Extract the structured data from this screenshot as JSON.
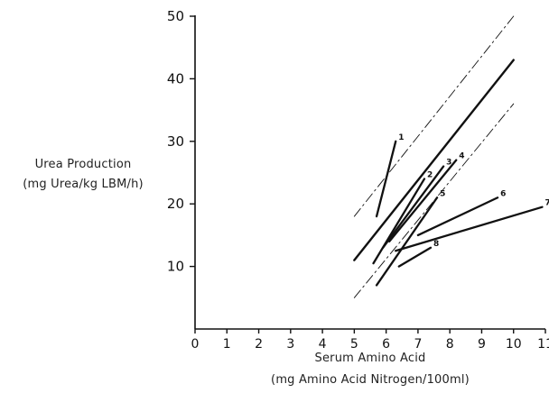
{
  "chart_data": {
    "type": "line",
    "title": "",
    "ylabel": [
      "Urea Production",
      "(mg Urea/kg LBM/h)"
    ],
    "xlabel": [
      "Serum Amino Acid",
      "(mg Amino Acid Nitrogen/100ml)"
    ],
    "xlim": [
      0,
      11
    ],
    "ylim": [
      0,
      50
    ],
    "x_ticks": [
      "0",
      "1",
      "2",
      "3",
      "4",
      "5",
      "6",
      "7",
      "8",
      "9",
      "10",
      "11"
    ],
    "y_ticks": [
      "10",
      "20",
      "30",
      "40",
      "50"
    ],
    "grid": false,
    "legend": "none",
    "series": [
      {
        "label": "",
        "style": "solid-thick",
        "x": [
          5.0,
          10.0
        ],
        "y": [
          11,
          43
        ]
      },
      {
        "label": "",
        "style": "dashdot",
        "x": [
          5.0,
          10.0
        ],
        "y": [
          18,
          50
        ]
      },
      {
        "label": "",
        "style": "dashdot",
        "x": [
          5.0,
          10.0
        ],
        "y": [
          5,
          36
        ]
      },
      {
        "label": "1",
        "style": "solid",
        "x": [
          5.7,
          6.3
        ],
        "y": [
          18,
          30
        ]
      },
      {
        "label": "2",
        "style": "solid",
        "x": [
          5.6,
          7.2
        ],
        "y": [
          10.5,
          24
        ]
      },
      {
        "label": "3",
        "style": "solid",
        "x": [
          5.9,
          7.8
        ],
        "y": [
          13,
          26
        ]
      },
      {
        "label": "4",
        "style": "solid",
        "x": [
          6.1,
          8.2
        ],
        "y": [
          14,
          27
        ]
      },
      {
        "label": "5",
        "style": "solid",
        "x": [
          5.7,
          7.6
        ],
        "y": [
          7,
          21
        ]
      },
      {
        "label": "6",
        "style": "solid",
        "x": [
          7.0,
          9.5
        ],
        "y": [
          15,
          21
        ]
      },
      {
        "label": "7",
        "style": "solid",
        "x": [
          6.3,
          10.9
        ],
        "y": [
          12.5,
          19.5
        ]
      },
      {
        "label": "8",
        "style": "solid",
        "x": [
          6.4,
          7.4
        ],
        "y": [
          10,
          13
        ]
      }
    ]
  }
}
